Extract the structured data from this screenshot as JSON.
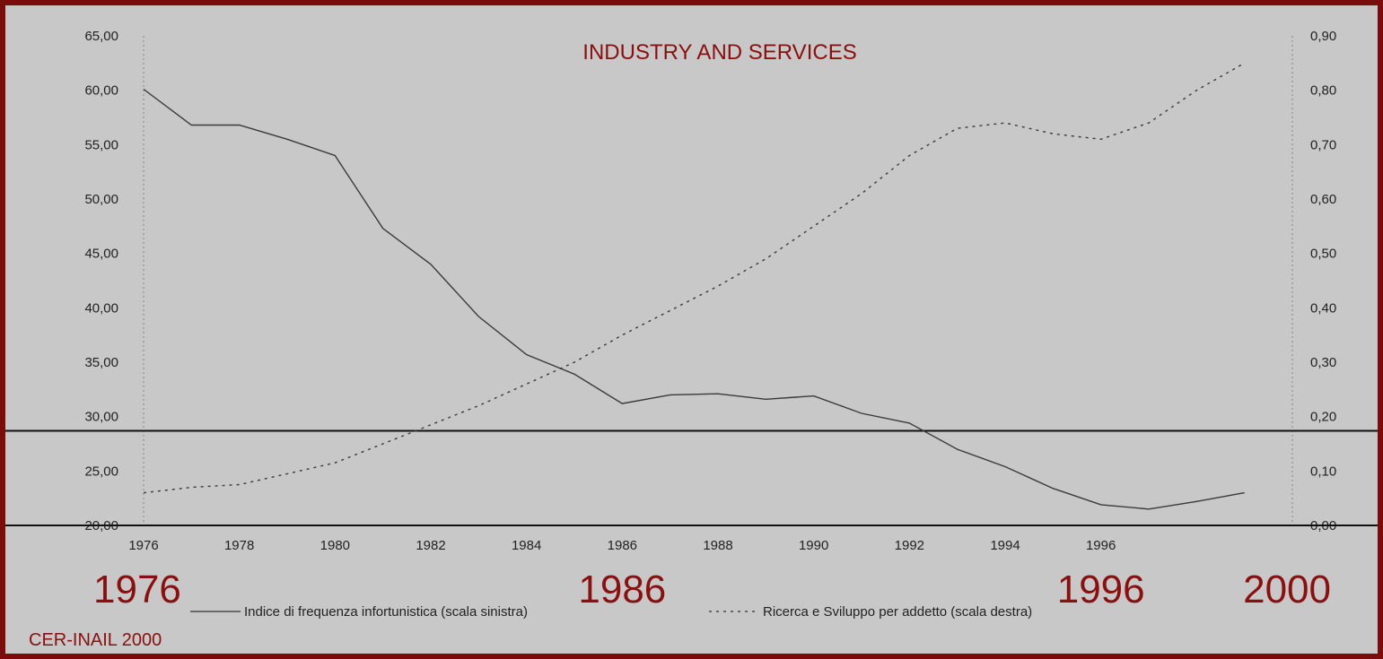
{
  "chart_data": {
    "type": "line",
    "title": "INDUSTRY AND SERVICES",
    "source": "CER-INAIL 2000",
    "x_ticks": [
      "1976",
      "1978",
      "1980",
      "1982",
      "1984",
      "1986",
      "1988",
      "1990",
      "1992",
      "1994",
      "1996"
    ],
    "y_left": {
      "range": [
        20,
        65
      ],
      "ticks": [
        "20,00",
        "25,00",
        "30,00",
        "35,00",
        "40,00",
        "45,00",
        "50,00",
        "55,00",
        "60,00",
        "65,00"
      ]
    },
    "y_right": {
      "range": [
        0,
        0.9
      ],
      "ticks": [
        "0,00",
        "0,10",
        "0,20",
        "0,30",
        "0,40",
        "0,50",
        "0,60",
        "0,70",
        "0,80",
        "0,90"
      ]
    },
    "series": [
      {
        "name": "Indice di frequenza infortunistica (scala sinistra)",
        "axis": "left",
        "style": "solid",
        "x": [
          1976,
          1977,
          1978,
          1979,
          1980,
          1981,
          1982,
          1983,
          1984,
          1985,
          1986,
          1987,
          1988,
          1989,
          1990,
          1991,
          1992,
          1993,
          1994,
          1995,
          1996,
          1997,
          1998,
          1999
        ],
        "values": [
          60.1,
          56.8,
          56.8,
          55.5,
          54.0,
          47.3,
          44.0,
          39.2,
          35.7,
          33.9,
          31.2,
          32.0,
          32.1,
          31.6,
          31.9,
          30.3,
          29.4,
          27.0,
          25.4,
          23.4,
          21.9,
          21.5,
          22.2,
          23.0
        ]
      },
      {
        "name": "Ricerca e Sviluppo per addetto (scala destra)",
        "axis": "right",
        "style": "dotted",
        "x": [
          1976,
          1977,
          1978,
          1979,
          1980,
          1981,
          1982,
          1983,
          1984,
          1985,
          1986,
          1987,
          1988,
          1989,
          1990,
          1991,
          1992,
          1993,
          1994,
          1995,
          1996,
          1997,
          1998,
          1999
        ],
        "values": [
          0.06,
          0.07,
          0.075,
          0.095,
          0.115,
          0.15,
          0.185,
          0.22,
          0.26,
          0.3,
          0.35,
          0.395,
          0.44,
          0.49,
          0.55,
          0.61,
          0.68,
          0.73,
          0.74,
          0.72,
          0.71,
          0.74,
          0.8,
          0.85
        ]
      }
    ],
    "reference_lines": [
      {
        "axis": "left",
        "value": 28.7
      },
      {
        "axis": "left",
        "value": 20.0
      }
    ],
    "highlight_years": [
      "1976",
      "1986",
      "1996",
      "2000"
    ],
    "grid": false
  }
}
